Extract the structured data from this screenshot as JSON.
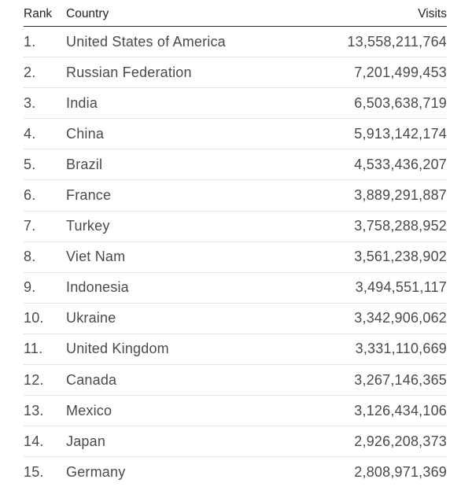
{
  "table": {
    "headers": {
      "rank": "Rank",
      "country": "Country",
      "visits": "Visits"
    },
    "rows": [
      {
        "rank": "1.",
        "country": "United States of America",
        "visits": "13,558,211,764"
      },
      {
        "rank": "2.",
        "country": "Russian Federation",
        "visits": "7,201,499,453"
      },
      {
        "rank": "3.",
        "country": "India",
        "visits": "6,503,638,719"
      },
      {
        "rank": "4.",
        "country": "China",
        "visits": "5,913,142,174"
      },
      {
        "rank": "5.",
        "country": "Brazil",
        "visits": "4,533,436,207"
      },
      {
        "rank": "6.",
        "country": "France",
        "visits": "3,889,291,887"
      },
      {
        "rank": "7.",
        "country": "Turkey",
        "visits": "3,758,288,952"
      },
      {
        "rank": "8.",
        "country": "Viet Nam",
        "visits": "3,561,238,902"
      },
      {
        "rank": "9.",
        "country": "Indonesia",
        "visits": "3,494,551,117"
      },
      {
        "rank": "10.",
        "country": "Ukraine",
        "visits": "3,342,906,062"
      },
      {
        "rank": "11.",
        "country": "United Kingdom",
        "visits": "3,331,110,669"
      },
      {
        "rank": "12.",
        "country": "Canada",
        "visits": "3,267,146,365"
      },
      {
        "rank": "13.",
        "country": "Mexico",
        "visits": "3,126,434,106"
      },
      {
        "rank": "14.",
        "country": "Japan",
        "visits": "2,926,208,373"
      },
      {
        "rank": "15.",
        "country": "Germany",
        "visits": "2,808,971,369"
      }
    ]
  }
}
